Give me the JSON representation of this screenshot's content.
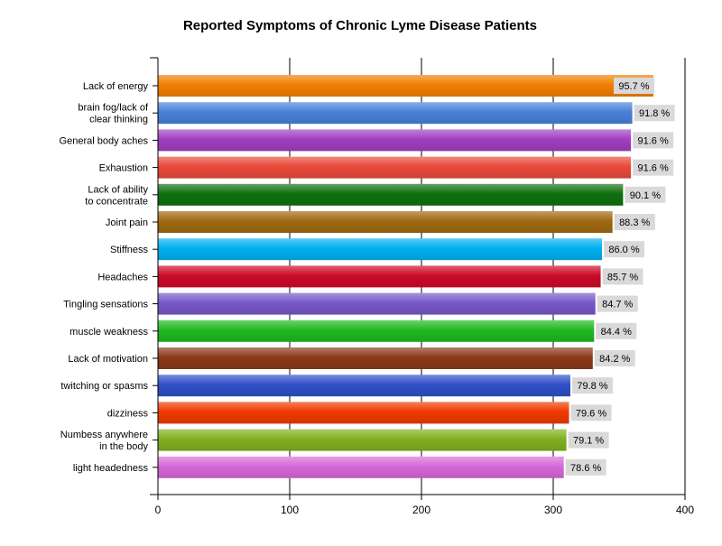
{
  "chart_data": {
    "type": "bar",
    "orientation": "horizontal",
    "title": "Reported Symptoms of Chronic Lyme Disease Patients",
    "xlim": [
      0,
      400
    ],
    "x_ticks": [
      "0",
      "100",
      "200",
      "300",
      "400"
    ],
    "grid": true,
    "categories": [
      [
        "Lack of energy"
      ],
      [
        "brain fog/lack of",
        "clear thinking"
      ],
      [
        "General body aches"
      ],
      [
        "Exhaustion"
      ],
      [
        "Lack of ability",
        "to concentrate"
      ],
      [
        "Joint pain"
      ],
      [
        "Stiffness"
      ],
      [
        "Headaches"
      ],
      [
        "Tingling sensations"
      ],
      [
        "muscle weakness"
      ],
      [
        "Lack of motivation"
      ],
      [
        "twitching or spasms"
      ],
      [
        "dizziness"
      ],
      [
        "Numbess anywhere",
        "in the body"
      ],
      [
        "light headedness"
      ]
    ],
    "values": [
      376,
      360,
      359,
      359,
      353,
      345,
      337,
      336,
      332,
      331,
      330,
      313,
      312,
      310,
      308
    ],
    "data_labels": [
      "95.7 %",
      "91.8 %",
      "91.6 %",
      "91.6 %",
      "90.1 %",
      "88.3 %",
      "86.0 %",
      "85.7 %",
      "84.7 %",
      "84.4 %",
      "84.2 %",
      "79.8 %",
      "79.6 %",
      "79.1 %",
      "78.6 %"
    ],
    "colors": [
      "#f08000",
      "#4a80d8",
      "#a040c0",
      "#ea4a3a",
      "#107010",
      "#a06a10",
      "#00b0f0",
      "#cc0a2a",
      "#7858c8",
      "#20b820",
      "#8a3a18",
      "#3050c8",
      "#f03a00",
      "#80b020",
      "#d868d8"
    ]
  }
}
